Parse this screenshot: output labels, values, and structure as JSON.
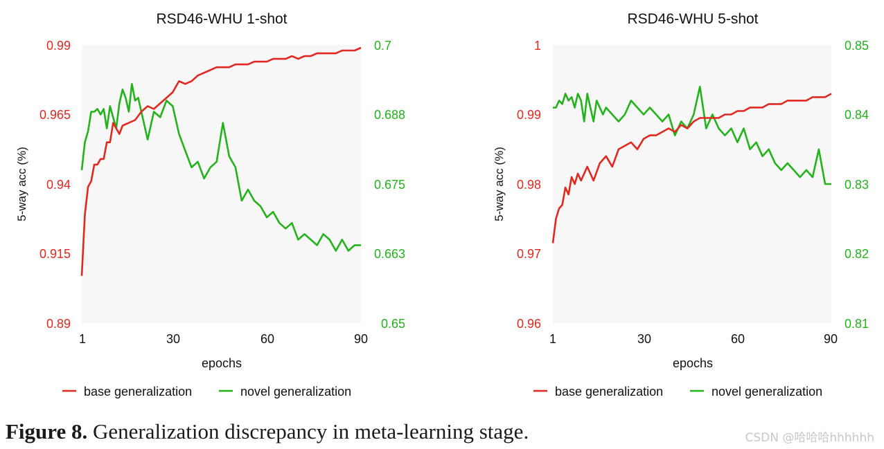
{
  "figure_caption": {
    "label": "Figure 8.",
    "text": "Generalization discrepancy in meta-learning stage."
  },
  "watermark": "CSDN @哈哈哈hhhhhh",
  "colors": {
    "base": "#e0281e",
    "novel": "#22b21a",
    "plot_bg": "#f7f7f7"
  },
  "chart_data": [
    {
      "type": "line",
      "title": "RSD46-WHU 1-shot",
      "xlabel": "epochs",
      "ylabel": "5-way acc (%)",
      "xlim": [
        1,
        90
      ],
      "xticks": [
        "1",
        "30",
        "60",
        "90"
      ],
      "ylim_left": [
        0.89,
        0.99
      ],
      "yticks_left": [
        "0.99",
        "0.965",
        "0.94",
        "0.915",
        "0.89"
      ],
      "ylim_right": [
        0.65,
        0.7
      ],
      "yticks_right": [
        "0.7",
        "0.688",
        "0.675",
        "0.663",
        "0.65"
      ],
      "legend": [
        "base generalization",
        "novel generalization"
      ],
      "series": [
        {
          "name": "base generalization",
          "axis": "left",
          "x": [
            1,
            2,
            3,
            4,
            5,
            6,
            7,
            8,
            9,
            10,
            11,
            12,
            13,
            14,
            16,
            18,
            20,
            22,
            24,
            26,
            28,
            30,
            32,
            34,
            36,
            38,
            40,
            42,
            44,
            46,
            48,
            50,
            52,
            54,
            56,
            58,
            60,
            62,
            64,
            66,
            68,
            70,
            72,
            74,
            76,
            78,
            80,
            82,
            84,
            86,
            88,
            90
          ],
          "values": [
            0.907,
            0.929,
            0.939,
            0.941,
            0.947,
            0.947,
            0.949,
            0.949,
            0.955,
            0.955,
            0.962,
            0.96,
            0.958,
            0.961,
            0.962,
            0.963,
            0.966,
            0.968,
            0.967,
            0.969,
            0.971,
            0.973,
            0.977,
            0.976,
            0.977,
            0.979,
            0.98,
            0.981,
            0.982,
            0.982,
            0.982,
            0.983,
            0.983,
            0.983,
            0.984,
            0.984,
            0.984,
            0.985,
            0.985,
            0.985,
            0.986,
            0.985,
            0.986,
            0.986,
            0.987,
            0.987,
            0.987,
            0.987,
            0.988,
            0.988,
            0.988,
            0.989
          ]
        },
        {
          "name": "novel generalization",
          "axis": "right",
          "x": [
            1,
            2,
            3,
            4,
            5,
            6,
            7,
            8,
            9,
            10,
            11,
            12,
            13,
            14,
            15,
            16,
            17,
            18,
            19,
            20,
            22,
            24,
            26,
            28,
            30,
            32,
            34,
            36,
            38,
            40,
            42,
            44,
            46,
            48,
            50,
            52,
            54,
            56,
            58,
            60,
            62,
            64,
            66,
            68,
            70,
            72,
            74,
            76,
            78,
            80,
            82,
            84,
            86,
            88,
            90
          ],
          "values": [
            0.6775,
            0.6825,
            0.6845,
            0.688,
            0.688,
            0.6885,
            0.6875,
            0.6885,
            0.685,
            0.689,
            0.687,
            0.685,
            0.6895,
            0.692,
            0.6905,
            0.688,
            0.693,
            0.69,
            0.6905,
            0.688,
            0.683,
            0.688,
            0.687,
            0.69,
            0.689,
            0.684,
            0.681,
            0.678,
            0.679,
            0.676,
            0.678,
            0.679,
            0.686,
            0.68,
            0.678,
            0.672,
            0.674,
            0.672,
            0.671,
            0.669,
            0.67,
            0.668,
            0.667,
            0.668,
            0.665,
            0.666,
            0.665,
            0.664,
            0.666,
            0.665,
            0.663,
            0.665,
            0.663,
            0.664,
            0.664
          ]
        }
      ]
    },
    {
      "type": "line",
      "title": "RSD46-WHU 5-shot",
      "xlabel": "epochs",
      "ylabel": "5-way acc (%)",
      "xlim": [
        1,
        90
      ],
      "xticks": [
        "1",
        "30",
        "60",
        "90"
      ],
      "ylim_left": [
        0.96,
        1.0
      ],
      "yticks_left": [
        "1",
        "0.99",
        "0.98",
        "0.97",
        "0.96"
      ],
      "ylim_right": [
        0.81,
        0.85
      ],
      "yticks_right": [
        "0.85",
        "0.84",
        "0.83",
        "0.82",
        "0.81"
      ],
      "legend": [
        "base generalization",
        "novel generalization"
      ],
      "series": [
        {
          "name": "base generalization",
          "axis": "left",
          "x": [
            1,
            2,
            3,
            4,
            5,
            6,
            7,
            8,
            9,
            10,
            12,
            14,
            16,
            18,
            20,
            22,
            24,
            26,
            28,
            30,
            32,
            34,
            36,
            38,
            40,
            42,
            44,
            46,
            48,
            50,
            52,
            54,
            56,
            58,
            60,
            62,
            64,
            66,
            68,
            70,
            72,
            74,
            76,
            78,
            80,
            82,
            84,
            86,
            88,
            90
          ],
          "values": [
            0.9715,
            0.975,
            0.9765,
            0.977,
            0.9795,
            0.9785,
            0.981,
            0.98,
            0.9815,
            0.9805,
            0.9825,
            0.9805,
            0.983,
            0.984,
            0.9825,
            0.985,
            0.9855,
            0.986,
            0.985,
            0.9865,
            0.987,
            0.987,
            0.9875,
            0.988,
            0.9875,
            0.9885,
            0.988,
            0.989,
            0.9895,
            0.9895,
            0.9895,
            0.9895,
            0.99,
            0.99,
            0.9905,
            0.9905,
            0.991,
            0.991,
            0.991,
            0.9915,
            0.9915,
            0.9915,
            0.992,
            0.992,
            0.992,
            0.992,
            0.9925,
            0.9925,
            0.9925,
            0.993
          ]
        },
        {
          "name": "novel generalization",
          "axis": "right",
          "x": [
            1,
            2,
            3,
            4,
            5,
            6,
            7,
            8,
            9,
            10,
            11,
            12,
            13,
            14,
            15,
            16,
            17,
            18,
            20,
            22,
            24,
            26,
            28,
            30,
            32,
            34,
            36,
            38,
            40,
            42,
            44,
            46,
            48,
            50,
            52,
            54,
            56,
            58,
            60,
            62,
            64,
            66,
            68,
            70,
            72,
            74,
            76,
            78,
            80,
            82,
            84,
            86,
            88,
            90
          ],
          "values": [
            0.841,
            0.841,
            0.842,
            0.8415,
            0.843,
            0.842,
            0.8425,
            0.841,
            0.843,
            0.842,
            0.839,
            0.843,
            0.841,
            0.839,
            0.842,
            0.841,
            0.84,
            0.841,
            0.84,
            0.839,
            0.84,
            0.842,
            0.841,
            0.84,
            0.841,
            0.84,
            0.839,
            0.84,
            0.837,
            0.839,
            0.838,
            0.84,
            0.844,
            0.838,
            0.84,
            0.838,
            0.837,
            0.838,
            0.836,
            0.838,
            0.835,
            0.836,
            0.834,
            0.835,
            0.833,
            0.832,
            0.833,
            0.832,
            0.831,
            0.832,
            0.831,
            0.835,
            0.83,
            0.83
          ]
        }
      ]
    }
  ]
}
